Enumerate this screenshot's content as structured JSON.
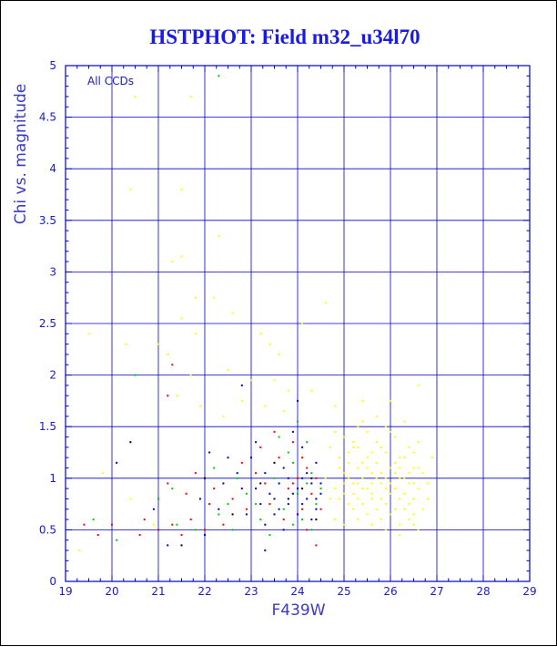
{
  "chart_data": {
    "type": "scatter",
    "title": "HSTPHOT: Field m32_u34l70",
    "xlabel": "F439W",
    "ylabel": "Chi vs. magnitude",
    "annotation": "All CCDs",
    "xlim": [
      19,
      29
    ],
    "ylim": [
      0,
      5
    ],
    "x_ticks": [
      "19",
      "20",
      "21",
      "22",
      "23",
      "24",
      "25",
      "26",
      "27",
      "28",
      "29"
    ],
    "y_ticks": [
      "0",
      "0.5",
      "1",
      "1.5",
      "2",
      "2.5",
      "3",
      "3.5",
      "4",
      "4.5",
      "5"
    ],
    "grid": true,
    "colors": {
      "axis": "#0000cc",
      "grid": "#0000cc",
      "title": "#1a1ae6",
      "series": [
        "#ffff00",
        "#ff0000",
        "#00cc00",
        "#0000cc",
        "#000000"
      ]
    },
    "series": [
      {
        "color": "#ffff00",
        "points": [
          [
            20.5,
            4.7
          ],
          [
            21.7,
            4.7
          ],
          [
            20.4,
            3.8
          ],
          [
            21.5,
            3.8
          ],
          [
            22.3,
            3.35
          ],
          [
            21.5,
            3.15
          ],
          [
            21.3,
            3.1
          ],
          [
            21.8,
            2.75
          ],
          [
            22.2,
            2.75
          ],
          [
            19.5,
            2.4
          ],
          [
            21.5,
            2.55
          ],
          [
            20.3,
            2.3
          ],
          [
            21.0,
            2.3
          ],
          [
            21.8,
            2.4
          ],
          [
            22.6,
            2.6
          ],
          [
            23.2,
            2.4
          ],
          [
            23.4,
            2.3
          ],
          [
            23.6,
            2.2
          ],
          [
            24.1,
            2.5
          ],
          [
            24.6,
            2.7
          ],
          [
            21.2,
            2.2
          ],
          [
            21.7,
            2.0
          ],
          [
            22.5,
            2.05
          ],
          [
            23.0,
            1.95
          ],
          [
            23.5,
            1.95
          ],
          [
            23.8,
            1.85
          ],
          [
            24.3,
            1.85
          ],
          [
            21.4,
            1.8
          ],
          [
            21.9,
            1.7
          ],
          [
            22.4,
            1.6
          ],
          [
            22.8,
            1.75
          ],
          [
            23.3,
            1.7
          ],
          [
            23.7,
            1.65
          ],
          [
            24.8,
            1.7
          ],
          [
            25.4,
            1.75
          ],
          [
            26.0,
            1.75
          ],
          [
            26.6,
            1.9
          ],
          [
            19.8,
            1.05
          ],
          [
            20.4,
            0.8
          ],
          [
            19.3,
            0.3
          ],
          [
            20.9,
            0.55
          ],
          [
            24.8,
            1.45
          ],
          [
            25.0,
            1.4
          ],
          [
            25.2,
            1.3
          ],
          [
            25.3,
            1.5
          ],
          [
            25.5,
            1.45
          ],
          [
            25.6,
            1.25
          ],
          [
            25.8,
            1.3
          ],
          [
            25.9,
            1.5
          ],
          [
            26.1,
            1.4
          ],
          [
            26.2,
            1.2
          ],
          [
            26.4,
            1.3
          ],
          [
            26.5,
            1.1
          ],
          [
            26.7,
            1.05
          ],
          [
            26.8,
            0.95
          ],
          [
            24.9,
            1.2
          ],
          [
            25.0,
            1.05
          ],
          [
            25.1,
            1.15
          ],
          [
            25.2,
            0.95
          ],
          [
            25.3,
            1.1
          ],
          [
            25.4,
            1.0
          ],
          [
            25.5,
            0.9
          ],
          [
            25.6,
            1.05
          ],
          [
            25.7,
            1.15
          ],
          [
            25.8,
            0.95
          ],
          [
            25.9,
            1.0
          ],
          [
            26.0,
            1.1
          ],
          [
            26.1,
            0.9
          ],
          [
            26.2,
            1.0
          ],
          [
            26.3,
            0.85
          ],
          [
            26.4,
            0.95
          ],
          [
            26.5,
            0.8
          ],
          [
            26.6,
            0.9
          ],
          [
            24.8,
            0.9
          ],
          [
            24.9,
            0.8
          ],
          [
            25.0,
            0.85
          ],
          [
            25.1,
            0.75
          ],
          [
            25.2,
            0.7
          ],
          [
            25.3,
            0.8
          ],
          [
            25.4,
            0.75
          ],
          [
            25.5,
            0.65
          ],
          [
            25.6,
            0.8
          ],
          [
            25.7,
            0.7
          ],
          [
            25.8,
            0.6
          ],
          [
            25.9,
            0.75
          ],
          [
            26.0,
            0.65
          ],
          [
            26.1,
            0.7
          ],
          [
            26.2,
            0.55
          ],
          [
            26.3,
            0.7
          ],
          [
            26.4,
            0.6
          ],
          [
            26.5,
            0.65
          ],
          [
            26.6,
            0.5
          ],
          [
            25.1,
            1.25
          ],
          [
            25.3,
            1.3
          ],
          [
            25.5,
            1.2
          ],
          [
            25.7,
            1.35
          ],
          [
            25.9,
            1.25
          ],
          [
            26.1,
            1.15
          ],
          [
            26.3,
            1.2
          ],
          [
            26.5,
            1.25
          ],
          [
            25.2,
            1.35
          ],
          [
            25.4,
            1.15
          ],
          [
            25.6,
            0.95
          ],
          [
            25.8,
            1.05
          ],
          [
            26.0,
            0.85
          ],
          [
            26.2,
            0.8
          ],
          [
            26.4,
            1.05
          ],
          [
            26.6,
            1.1
          ],
          [
            25.0,
            0.95
          ],
          [
            25.2,
            0.85
          ],
          [
            25.4,
            0.9
          ],
          [
            25.6,
            0.85
          ],
          [
            25.8,
            0.8
          ],
          [
            26.0,
            0.95
          ],
          [
            26.2,
            1.1
          ],
          [
            26.4,
            0.75
          ],
          [
            24.9,
            1.1
          ],
          [
            25.1,
            1.0
          ],
          [
            25.3,
            0.95
          ],
          [
            25.5,
            1.1
          ],
          [
            25.7,
            1.0
          ],
          [
            25.9,
            0.9
          ],
          [
            26.1,
            1.05
          ],
          [
            26.3,
            1.0
          ],
          [
            26.5,
            0.95
          ],
          [
            24.8,
            0.6
          ],
          [
            25.0,
            0.55
          ],
          [
            25.3,
            0.6
          ],
          [
            25.6,
            0.55
          ],
          [
            25.9,
            0.5
          ],
          [
            26.2,
            0.45
          ],
          [
            26.5,
            0.55
          ],
          [
            26.7,
            0.7
          ],
          [
            25.4,
            1.55
          ],
          [
            25.7,
            1.6
          ],
          [
            26.0,
            1.45
          ],
          [
            26.3,
            1.55
          ],
          [
            26.6,
            1.35
          ],
          [
            24.7,
            1.3
          ],
          [
            24.6,
            1.0
          ],
          [
            24.7,
            0.8
          ],
          [
            26.8,
            0.8
          ],
          [
            26.9,
            1.2
          ]
        ]
      },
      {
        "color": "#ff0000",
        "points": [
          [
            19.4,
            0.55
          ],
          [
            20.0,
            0.55
          ],
          [
            20.6,
            0.45
          ],
          [
            21.0,
            0.5
          ],
          [
            21.3,
            0.55
          ],
          [
            21.5,
            0.45
          ],
          [
            21.7,
            0.6
          ],
          [
            22.0,
            0.5
          ],
          [
            21.2,
            0.95
          ],
          [
            21.8,
            1.05
          ],
          [
            22.2,
            0.9
          ],
          [
            22.6,
            0.8
          ],
          [
            22.9,
            0.7
          ],
          [
            23.1,
            1.05
          ],
          [
            23.4,
            0.75
          ],
          [
            23.6,
            1.2
          ],
          [
            23.8,
            0.9
          ],
          [
            23.9,
            1.35
          ],
          [
            24.0,
            1.0
          ],
          [
            24.1,
            0.7
          ],
          [
            24.2,
            1.1
          ],
          [
            24.3,
            0.85
          ],
          [
            24.4,
            1.0
          ],
          [
            24.5,
            0.7
          ],
          [
            23.5,
            1.45
          ],
          [
            23.2,
            1.3
          ],
          [
            22.8,
            1.15
          ],
          [
            23.7,
            0.6
          ],
          [
            24.2,
            0.5
          ],
          [
            24.4,
            0.35
          ],
          [
            22.4,
            0.55
          ],
          [
            22.1,
            0.75
          ],
          [
            21.6,
            0.85
          ],
          [
            23.9,
            0.95
          ],
          [
            24.1,
            1.2
          ],
          [
            23.3,
            0.95
          ],
          [
            21.2,
            1.8
          ],
          [
            21.3,
            2.1
          ],
          [
            20.7,
            0.6
          ],
          [
            19.7,
            0.45
          ]
        ]
      },
      {
        "color": "#00cc00",
        "points": [
          [
            19.6,
            0.6
          ],
          [
            20.1,
            0.4
          ],
          [
            21.0,
            0.8
          ],
          [
            21.4,
            0.55
          ],
          [
            21.8,
            0.5
          ],
          [
            22.3,
            0.65
          ],
          [
            22.6,
            0.5
          ],
          [
            22.9,
            0.85
          ],
          [
            23.2,
            0.6
          ],
          [
            23.5,
            1.0
          ],
          [
            23.7,
            0.7
          ],
          [
            23.9,
            1.15
          ],
          [
            24.0,
            0.85
          ],
          [
            24.1,
            0.6
          ],
          [
            24.2,
            0.95
          ],
          [
            24.3,
            1.05
          ],
          [
            24.4,
            0.75
          ],
          [
            24.5,
            0.9
          ],
          [
            23.8,
            1.25
          ],
          [
            23.6,
            1.4
          ],
          [
            24.0,
            1.55
          ],
          [
            23.4,
            0.45
          ],
          [
            22.7,
            1.0
          ],
          [
            22.2,
            1.1
          ],
          [
            21.3,
            0.9
          ],
          [
            24.3,
            0.5
          ],
          [
            23.1,
            0.75
          ],
          [
            24.2,
            1.35
          ],
          [
            23.9,
            0.55
          ],
          [
            22.5,
            0.75
          ],
          [
            20.5,
            2.0
          ],
          [
            22.3,
            4.9
          ]
        ]
      },
      {
        "color": "#0000cc",
        "points": [
          [
            20.9,
            0.7
          ],
          [
            21.9,
            0.8
          ],
          [
            22.1,
            1.25
          ],
          [
            22.4,
            0.95
          ],
          [
            22.7,
            1.05
          ],
          [
            22.9,
            0.65
          ],
          [
            23.0,
            1.2
          ],
          [
            23.1,
            0.9
          ],
          [
            23.2,
            0.75
          ],
          [
            23.3,
            1.05
          ],
          [
            23.4,
            0.85
          ],
          [
            23.5,
            0.65
          ],
          [
            23.6,
            0.95
          ],
          [
            23.7,
            1.1
          ],
          [
            23.8,
            0.75
          ],
          [
            23.9,
            0.85
          ],
          [
            24.0,
            0.65
          ],
          [
            24.1,
            1.0
          ],
          [
            24.2,
            0.8
          ],
          [
            24.3,
            0.95
          ],
          [
            24.4,
            0.7
          ],
          [
            24.5,
            0.85
          ],
          [
            24.4,
            1.15
          ],
          [
            24.3,
            0.6
          ],
          [
            24.1,
            1.3
          ],
          [
            23.9,
            1.45
          ],
          [
            23.7,
            0.5
          ],
          [
            23.5,
            0.8
          ],
          [
            23.3,
            0.55
          ],
          [
            23.1,
            1.35
          ],
          [
            22.8,
            0.9
          ],
          [
            22.5,
            1.2
          ],
          [
            22.3,
            0.7
          ],
          [
            24.0,
            0.9
          ],
          [
            24.2,
            1.05
          ],
          [
            24.4,
            0.8
          ],
          [
            24.5,
            0.95
          ],
          [
            23.8,
            1.0
          ],
          [
            23.6,
            0.7
          ],
          [
            24.1,
            0.75
          ],
          [
            23.3,
            0.3
          ],
          [
            22.8,
            1.9
          ],
          [
            20.1,
            1.15
          ],
          [
            21.2,
            0.35
          ],
          [
            22.0,
            0.45
          ],
          [
            24.0,
            1.75
          ]
        ]
      },
      {
        "color": "#000000",
        "points": [
          [
            20.4,
            1.35
          ],
          [
            21.5,
            0.35
          ],
          [
            22.6,
            0.65
          ],
          [
            23.2,
            0.95
          ],
          [
            23.8,
            0.8
          ],
          [
            24.1,
            0.9
          ],
          [
            24.3,
            1.0
          ],
          [
            23.5,
            1.15
          ],
          [
            22.0,
            1.0
          ],
          [
            24.4,
            0.6
          ]
        ]
      }
    ]
  }
}
